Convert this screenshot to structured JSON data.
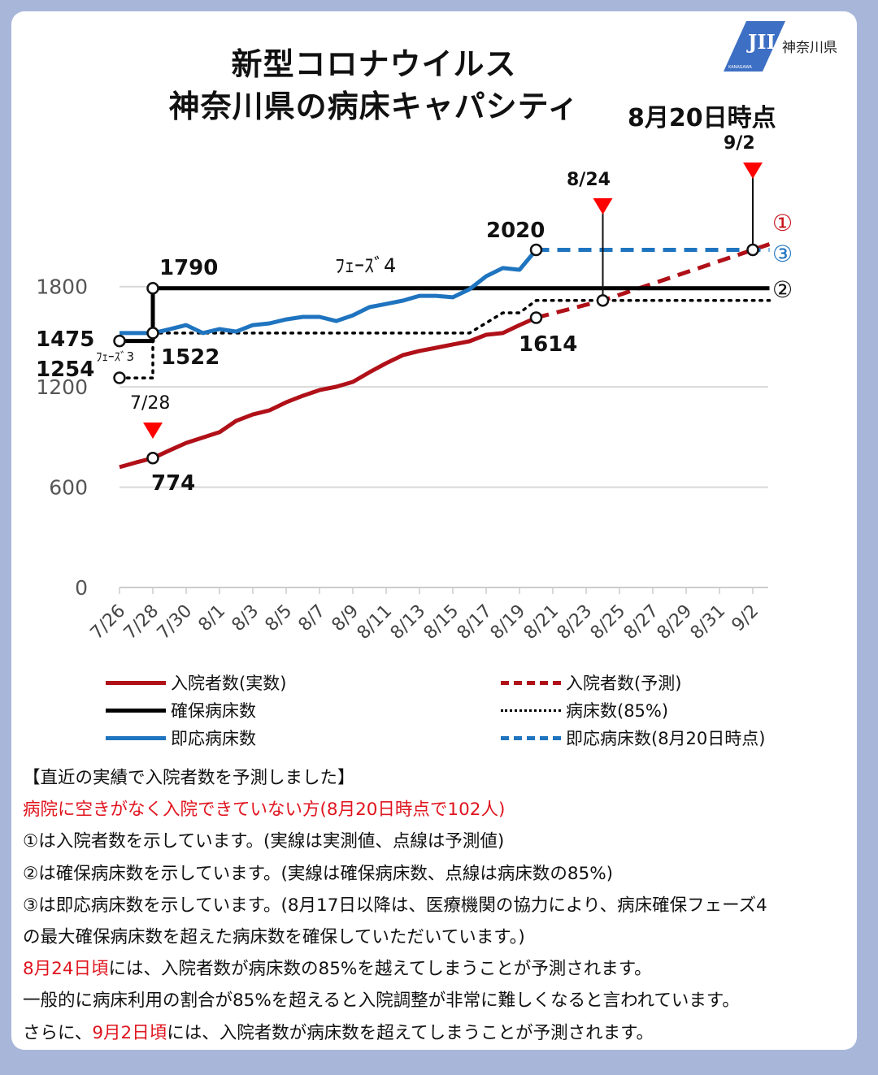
{
  "header": {
    "title_line1": "新型コロナウイルス",
    "title_line2": "神奈川県の病床キャパシティ",
    "as_of": "8月20日時点",
    "logo_text": "神奈川県",
    "logo_small_text": "KANAGAWA"
  },
  "colors": {
    "actual_red": "#b01018",
    "bed_black": "#000000",
    "immediate_blue": "#1f74bf",
    "marker_red": "#ff0000",
    "background": "#a8b7d9"
  },
  "chart_data": {
    "type": "line",
    "title": "新型コロナウイルス 神奈川県の病床キャパシティ",
    "xlabel": "",
    "ylabel": "",
    "x_tick_labels": [
      "7/26",
      "7/28",
      "7/30",
      "8/1",
      "8/3",
      "8/5",
      "8/7",
      "8/9",
      "8/11",
      "8/13",
      "8/15",
      "8/17",
      "8/19",
      "8/21",
      "8/23",
      "8/25",
      "8/27",
      "8/29",
      "8/31",
      "9/2"
    ],
    "y_ticks": [
      0,
      600,
      1200,
      1800
    ],
    "ylim": [
      0,
      2100
    ],
    "xlim": [
      "7/26",
      "9/3"
    ],
    "grid": true,
    "legend_placement": "bottom",
    "series": [
      {
        "name": "入院者数(実数)",
        "style": "solid",
        "color": "#b01018",
        "points": [
          [
            "7/26",
            720
          ],
          [
            "7/27",
            748
          ],
          [
            "7/28",
            774
          ],
          [
            "7/29",
            820
          ],
          [
            "7/30",
            865
          ],
          [
            "7/31",
            897
          ],
          [
            "8/1",
            929
          ],
          [
            "8/2",
            997
          ],
          [
            "8/3",
            1035
          ],
          [
            "8/4",
            1060
          ],
          [
            "8/5",
            1108
          ],
          [
            "8/6",
            1147
          ],
          [
            "8/7",
            1181
          ],
          [
            "8/8",
            1201
          ],
          [
            "8/9",
            1230
          ],
          [
            "8/10",
            1288
          ],
          [
            "8/11",
            1342
          ],
          [
            "8/12",
            1390
          ],
          [
            "8/13",
            1415
          ],
          [
            "8/14",
            1434
          ],
          [
            "8/15",
            1454
          ],
          [
            "8/16",
            1473
          ],
          [
            "8/17",
            1512
          ],
          [
            "8/18",
            1522
          ],
          [
            "8/19",
            1570
          ],
          [
            "8/20",
            1614
          ]
        ]
      },
      {
        "name": "入院者数(予測)",
        "style": "dashed",
        "color": "#b01018",
        "points": [
          [
            "8/20",
            1614
          ],
          [
            "8/24",
            1717
          ],
          [
            "9/2",
            2020
          ],
          [
            "9/3",
            2054
          ]
        ]
      },
      {
        "name": "確保病床数",
        "style": "solid",
        "color": "#000000",
        "points": [
          [
            "7/26",
            1475
          ],
          [
            "7/28",
            1475
          ],
          [
            "7/28",
            1790
          ],
          [
            "9/3",
            1790
          ]
        ]
      },
      {
        "name": "病床数(85%)",
        "style": "dotted",
        "color": "#000000",
        "points": [
          [
            "7/26",
            1254
          ],
          [
            "7/28",
            1254
          ],
          [
            "7/28",
            1522
          ],
          [
            "8/16",
            1522
          ],
          [
            "8/18",
            1643
          ],
          [
            "8/19",
            1643
          ],
          [
            "8/20",
            1717
          ],
          [
            "9/3",
            1717
          ]
        ]
      },
      {
        "name": "即応病床数",
        "style": "solid",
        "color": "#1f74bf",
        "points": [
          [
            "7/26",
            1522
          ],
          [
            "7/27",
            1522
          ],
          [
            "7/28",
            1522
          ],
          [
            "7/29",
            1545
          ],
          [
            "7/30",
            1570
          ],
          [
            "7/31",
            1522
          ],
          [
            "8/1",
            1546
          ],
          [
            "8/2",
            1531
          ],
          [
            "8/3",
            1570
          ],
          [
            "8/4",
            1580
          ],
          [
            "8/5",
            1604
          ],
          [
            "8/6",
            1619
          ],
          [
            "8/7",
            1619
          ],
          [
            "8/8",
            1594
          ],
          [
            "8/9",
            1628
          ],
          [
            "8/10",
            1677
          ],
          [
            "8/11",
            1696
          ],
          [
            "8/12",
            1716
          ],
          [
            "8/13",
            1745
          ],
          [
            "8/14",
            1745
          ],
          [
            "8/15",
            1736
          ],
          [
            "8/16",
            1784
          ],
          [
            "8/17",
            1862
          ],
          [
            "8/18",
            1911
          ],
          [
            "8/19",
            1901
          ],
          [
            "8/20",
            2020
          ]
        ]
      },
      {
        "name": "即応病床数(8月20日時点)",
        "style": "dashed",
        "color": "#1f74bf",
        "points": [
          [
            "8/20",
            2020
          ],
          [
            "9/3",
            2020
          ]
        ]
      }
    ],
    "markers": [
      [
        "7/26",
        1475
      ],
      [
        "7/28",
        1790
      ],
      [
        "7/28",
        1522
      ],
      [
        "7/26",
        1254
      ],
      [
        "7/28",
        774
      ],
      [
        "8/20",
        2020
      ],
      [
        "8/20",
        1614
      ],
      [
        "8/24",
        1717
      ],
      [
        "9/2",
        2020
      ]
    ],
    "annotations": {
      "v1790": "1790",
      "v1475": "1475",
      "v1254": "1254",
      "v1522": "1522",
      "v774": "774",
      "v1614": "1614",
      "v2020": "2020",
      "phase4": "ﾌｪｰｽﾞ4",
      "phase3": "ﾌｪｰｽﾞ3",
      "date_0728": "7/28",
      "date_0824": "8/24",
      "date_0902": "9/2",
      "circle1": "①",
      "circle2": "②",
      "circle3": "③"
    },
    "event_dates": [
      "7/28",
      "8/24",
      "9/2"
    ]
  },
  "legend": [
    {
      "label": "入院者数(実数)",
      "color": "#b01018",
      "style": "solid"
    },
    {
      "label": "入院者数(予測)",
      "color": "#b01018",
      "style": "dashed"
    },
    {
      "label": "確保病床数",
      "color": "#000000",
      "style": "solid"
    },
    {
      "label": "病床数(85%)",
      "color": "#000000",
      "style": "dotted"
    },
    {
      "label": "即応病床数",
      "color": "#1f74bf",
      "style": "solid"
    },
    {
      "label": "即応病床数(8月20日時点)",
      "color": "#1f74bf",
      "style": "dashed"
    }
  ],
  "notes": {
    "heading": "【直近の実績で入院者数を予測しました】",
    "waiting": "病院に空きがなく入院できていない方(8月20日時点で102人)",
    "n1": "①は入院者数を示しています。(実線は実測値、点線は予測値)",
    "n2": "②は確保病床数を示しています。(実線は確保病床数、点線は病床数の85%)",
    "n3a": "③は即応病床数を示しています。(8月17日以降は、医療機関の協力により、病床確保フェーズ4",
    "n3b": "の最大確保病床数を超えた病床数を確保していただいています。)",
    "n4_red": "8月24日頃",
    "n4_rest": "には、入院者数が病床数の85%を越えてしまうことが予測されます。",
    "n5": "一般的に病床利用の割合が85%を超えると入院調整が非常に難しくなると言われています。",
    "n6_pre": "さらに、",
    "n6_red": "9月2日頃",
    "n6_rest": "には、入院者数が病床数を超えてしまうことが予測されます。"
  }
}
